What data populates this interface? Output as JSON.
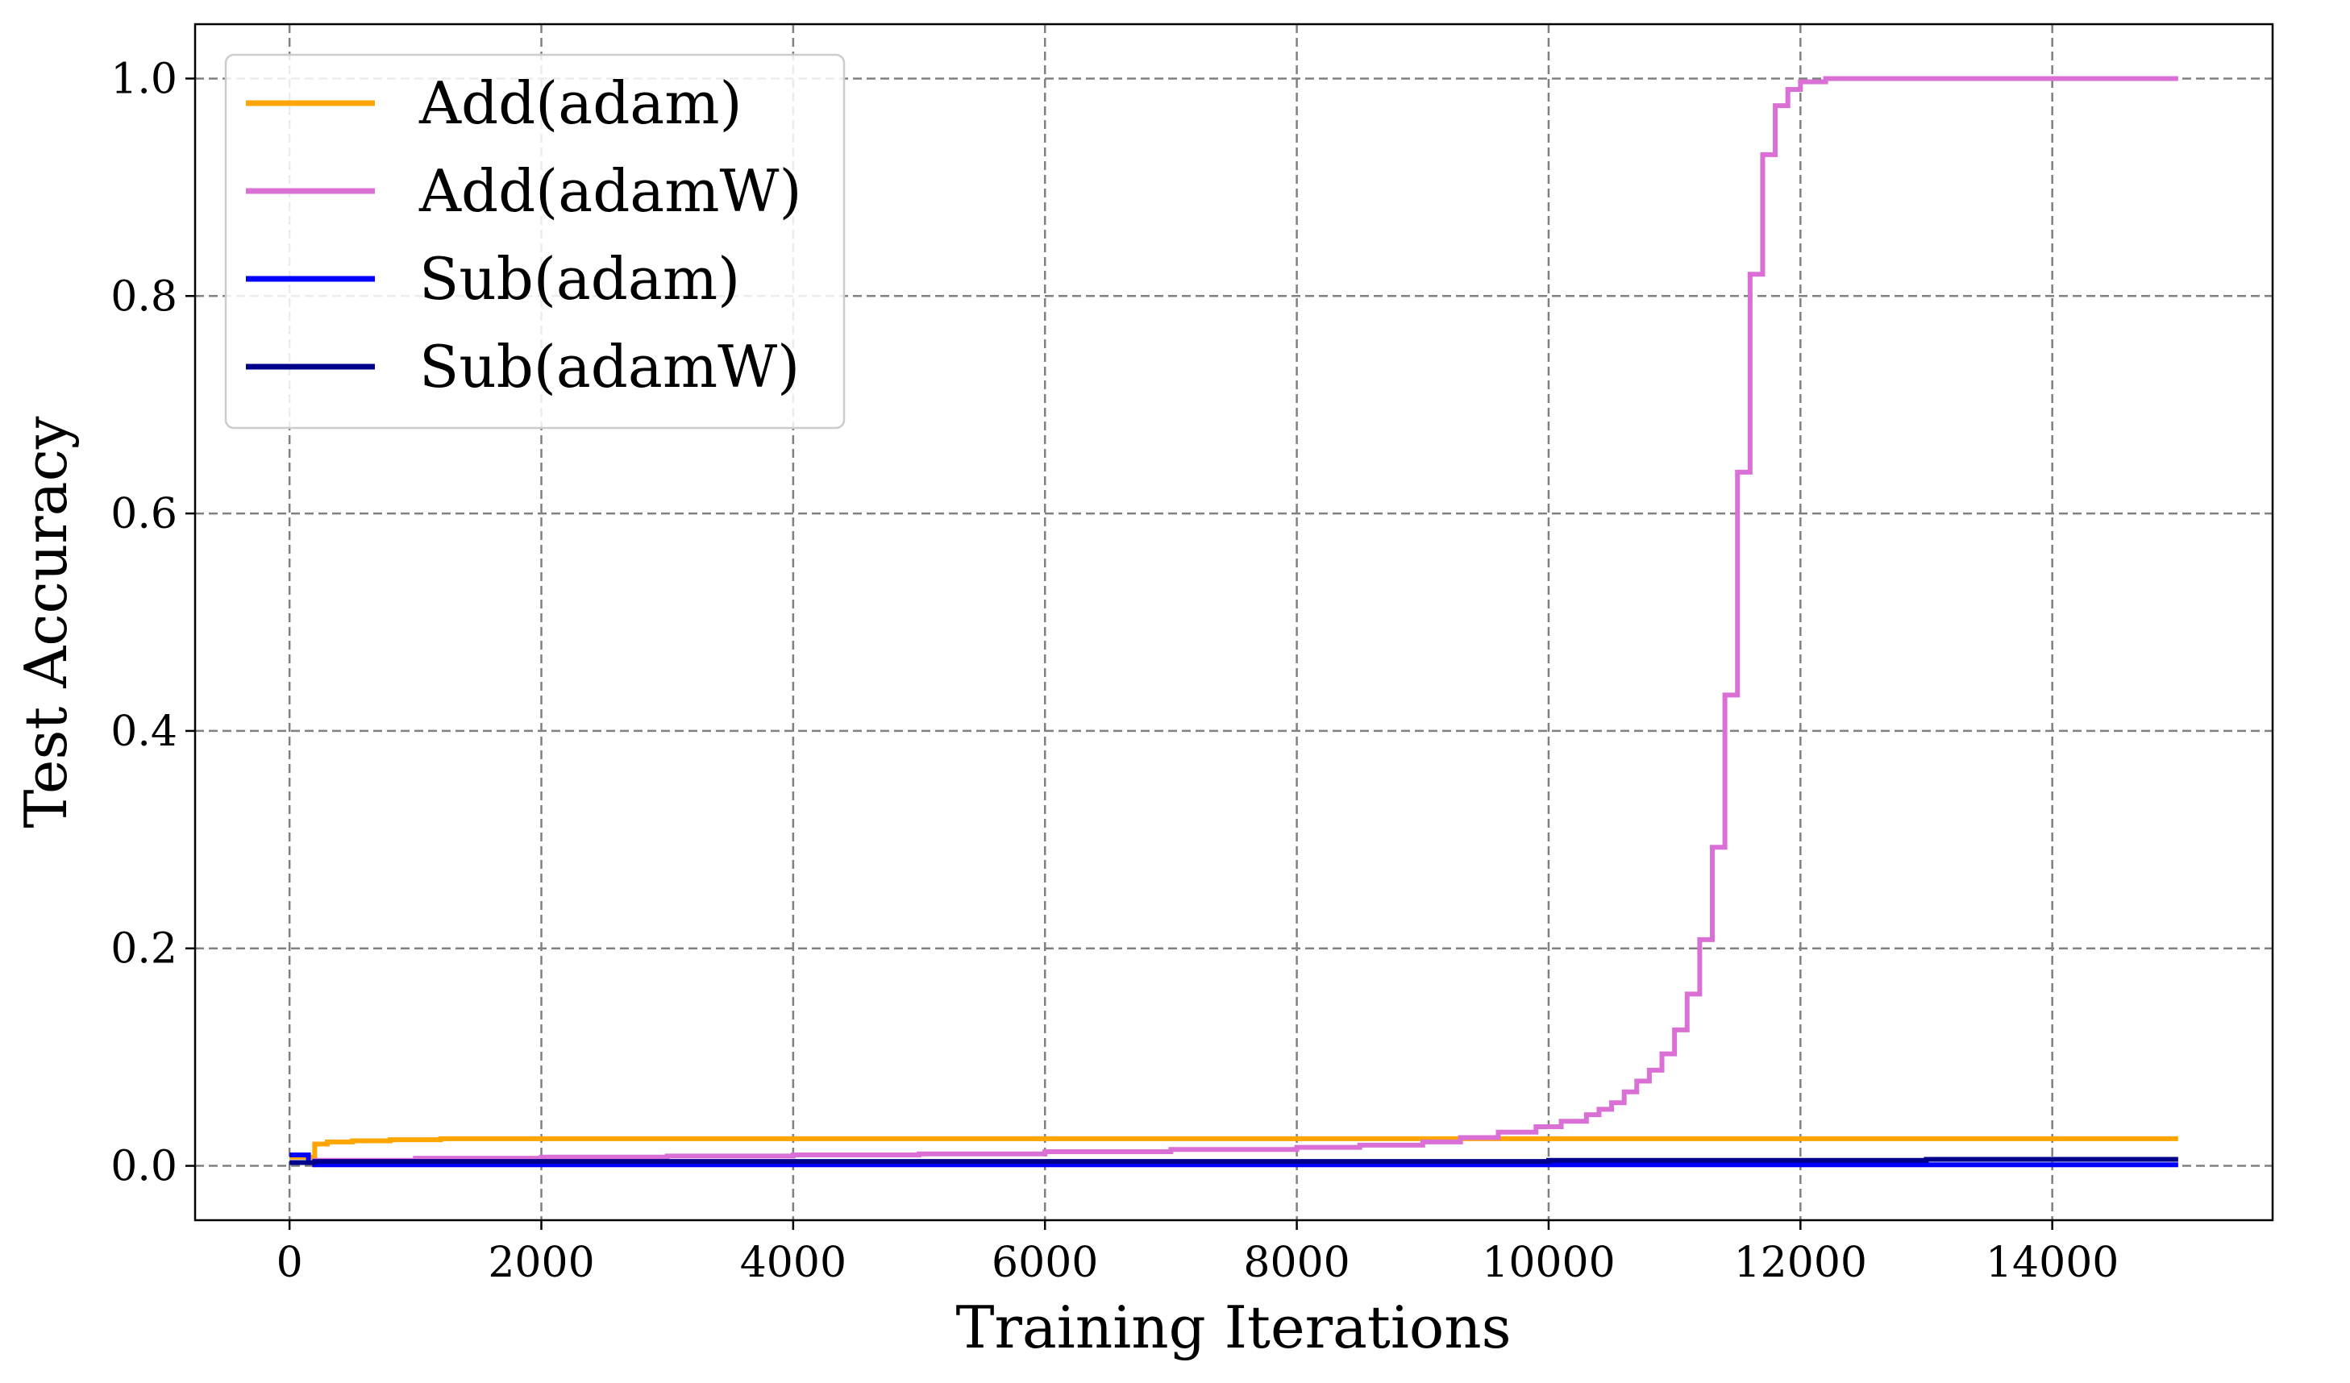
{
  "chart_data": {
    "type": "line",
    "title": "",
    "xlabel": "Training Iterations",
    "ylabel": "Test Accuracy",
    "xlim": [
      -750,
      15750
    ],
    "ylim": [
      -0.05,
      1.05
    ],
    "xticks": [
      0,
      2000,
      4000,
      6000,
      8000,
      10000,
      12000,
      14000
    ],
    "xtick_labels": [
      "0",
      "2000",
      "4000",
      "6000",
      "8000",
      "10000",
      "12000",
      "14000"
    ],
    "yticks": [
      0.0,
      0.2,
      0.4,
      0.6,
      0.8,
      1.0
    ],
    "ytick_labels": [
      "0.0",
      "0.2",
      "0.4",
      "0.6",
      "0.8",
      "1.0"
    ],
    "grid": true,
    "legend_position": "top-left",
    "step": true,
    "series": [
      {
        "name": "Add(adam)",
        "color": "#FFA500",
        "x": [
          0,
          100,
          200,
          300,
          500,
          800,
          1200,
          15000
        ],
        "y": [
          0.008,
          0.008,
          0.02,
          0.022,
          0.023,
          0.024,
          0.025,
          0.025
        ]
      },
      {
        "name": "Add(adamW)",
        "color": "#DA70D6",
        "x": [
          0,
          200,
          1000,
          2000,
          3000,
          4000,
          5000,
          6000,
          7000,
          8000,
          8500,
          9000,
          9300,
          9600,
          9900,
          10100,
          10300,
          10400,
          10500,
          10600,
          10700,
          10800,
          10900,
          11000,
          11100,
          11200,
          11300,
          11400,
          11500,
          11600,
          11700,
          11800,
          11900,
          12000,
          12200,
          15000
        ],
        "y": [
          0.003,
          0.005,
          0.007,
          0.008,
          0.009,
          0.01,
          0.011,
          0.013,
          0.015,
          0.017,
          0.019,
          0.022,
          0.026,
          0.031,
          0.036,
          0.041,
          0.047,
          0.052,
          0.058,
          0.068,
          0.078,
          0.088,
          0.103,
          0.125,
          0.158,
          0.208,
          0.293,
          0.433,
          0.638,
          0.82,
          0.93,
          0.975,
          0.99,
          0.997,
          1.0,
          1.0
        ]
      },
      {
        "name": "Sub(adam)",
        "color": "#0000FF",
        "x": [
          0,
          100,
          150,
          200,
          15000
        ],
        "y": [
          0.01,
          0.01,
          0.003,
          0.001,
          0.001
        ]
      },
      {
        "name": "Sub(adamW)",
        "color": "#00008B",
        "x": [
          0,
          150,
          200,
          2000,
          6000,
          10000,
          12000,
          13000,
          14000,
          15000
        ],
        "y": [
          0.003,
          0.003,
          0.004,
          0.004,
          0.004,
          0.005,
          0.005,
          0.006,
          0.006,
          0.006
        ]
      }
    ]
  }
}
